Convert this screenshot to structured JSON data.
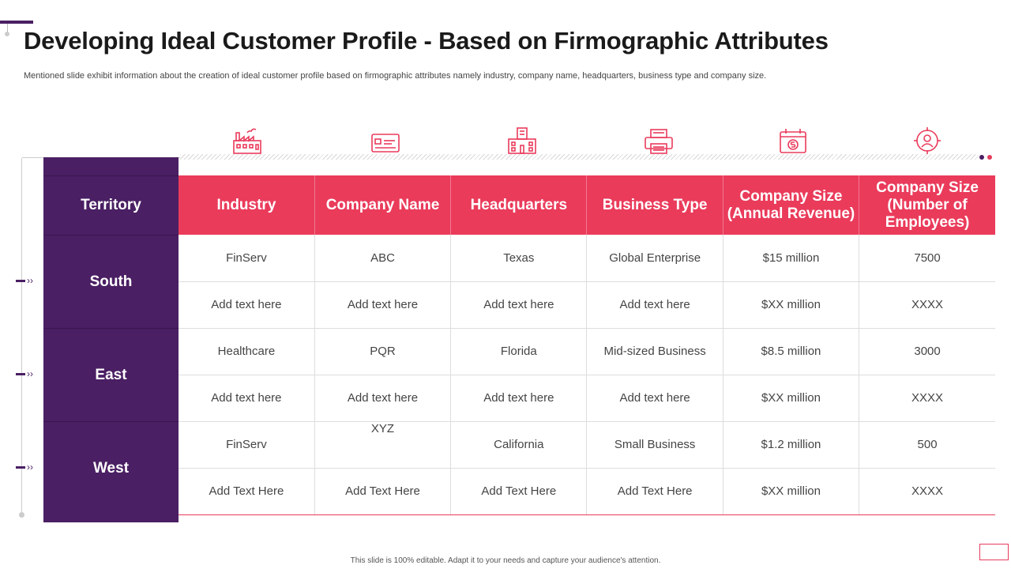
{
  "slide": {
    "title": "Developing Ideal Customer Profile - Based on Firmographic Attributes",
    "subtitle": "Mentioned slide exhibit information about the creation of ideal customer profile based on firmographic attributes namely industry, company name, headquarters, business type and company size.",
    "footer": "This slide is 100% editable. Adapt it to your needs and capture your audience's attention."
  },
  "colors": {
    "accent": "#ea3b5b",
    "territory": "#4a1f63"
  },
  "icons": [
    "factory-icon",
    "credit-card-icon",
    "building-icon",
    "printer-icon",
    "calendar-dollar-icon",
    "target-user-icon"
  ],
  "table": {
    "territory_header": "Territory",
    "headers": [
      "Industry",
      "Company Name",
      "Headquarters",
      "Business Type",
      "Company Size (Annual Revenue)",
      "Company Size (Number of Employees)"
    ],
    "territories": [
      "South",
      "East",
      "West"
    ],
    "rows": [
      [
        "FinServ",
        "ABC",
        "Texas",
        "Global Enterprise",
        "$15 million",
        "7500"
      ],
      [
        "Add text here",
        "Add text here",
        "Add text here",
        "Add text here",
        "$XX million",
        "XXXX"
      ],
      [
        "Healthcare",
        "PQR",
        "Florida",
        "Mid-sized Business",
        "$8.5 million",
        "3000"
      ],
      [
        "Add text here",
        "Add text here",
        "Add text here",
        "Add text here",
        "$XX million",
        "XXXX"
      ],
      [
        "FinServ",
        "XYZ",
        "California",
        "Small Business",
        "$1.2 million",
        "500"
      ],
      [
        "Add Text Here",
        "Add Text Here",
        "Add Text Here",
        "Add Text Here",
        "$XX million",
        "XXXX"
      ]
    ]
  }
}
